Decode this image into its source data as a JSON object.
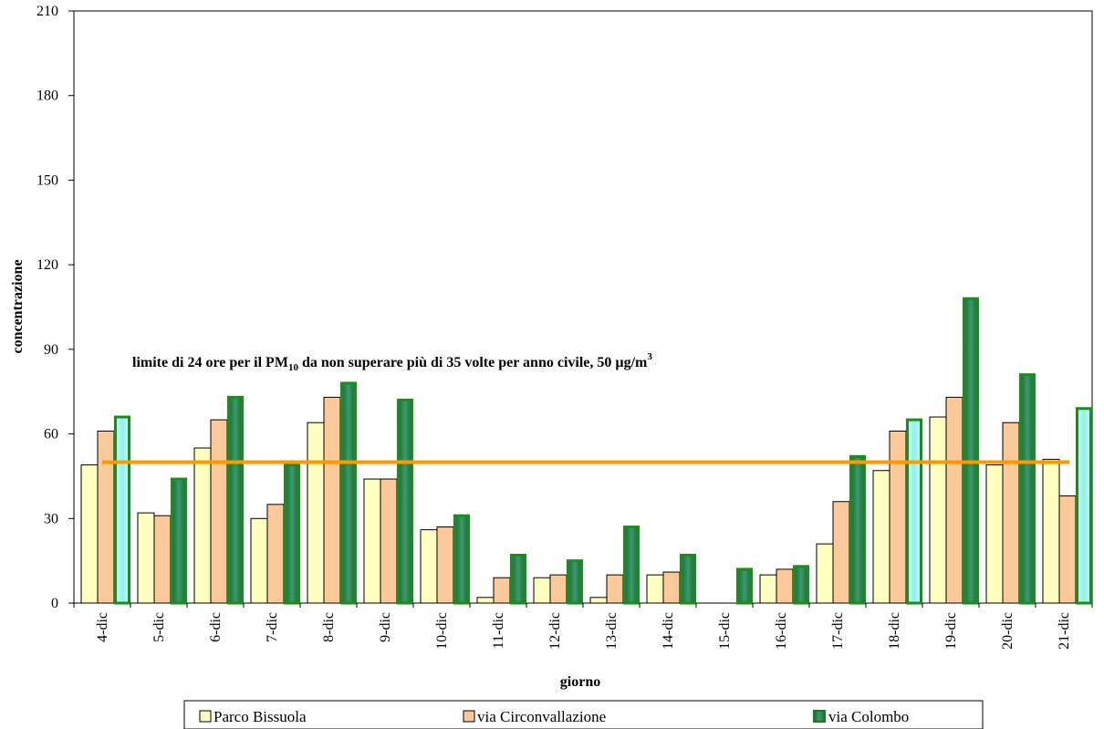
{
  "chart_data": {
    "type": "bar",
    "categories": [
      "4-dic",
      "5-dic",
      "6-dic",
      "7-dic",
      "8-dic",
      "9-dic",
      "10-dic",
      "11-dic",
      "12-dic",
      "13-dic",
      "14-dic",
      "15-dic",
      "16-dic",
      "17-dic",
      "18-dic",
      "19-dic",
      "20-dic",
      "21-dic"
    ],
    "series": [
      {
        "name": "Parco Bissuola",
        "color": "#ffffc0",
        "values": [
          49,
          32,
          55,
          30,
          64,
          44,
          26,
          2,
          9,
          2,
          10,
          null,
          10,
          21,
          47,
          66,
          49,
          51
        ]
      },
      {
        "name": "via Circonvallazione",
        "color": "#fcc99a",
        "values": [
          61,
          31,
          65,
          35,
          73,
          44,
          27,
          9,
          10,
          10,
          11,
          null,
          12,
          36,
          61,
          73,
          64,
          38
        ]
      },
      {
        "name": "via Colombo",
        "color": "#2e8b57",
        "values": [
          66,
          44,
          73,
          49,
          78,
          72,
          31,
          17,
          15,
          27,
          17,
          12,
          13,
          52,
          65,
          108,
          81,
          69
        ]
      }
    ],
    "highlight_color": "#a8f5f0",
    "highlight_categories": [
      "4-dic",
      "18-dic",
      "21-dic"
    ],
    "limit": {
      "value": 50,
      "color": "#ff9900",
      "label_pre": "limite di 24 ore per il PM",
      "label_sub": "10",
      "label_mid": " da non superare più di 35 volte per anno civile, 50 µg/m",
      "label_sup": "3"
    },
    "ylabel": "concentrazione",
    "xlabel": "giorno",
    "ylim": [
      0,
      210
    ],
    "yticks": [
      "0",
      "30",
      "60",
      "90",
      "120",
      "150",
      "180",
      "210"
    ],
    "legend_position": "bottom",
    "grid": false
  }
}
